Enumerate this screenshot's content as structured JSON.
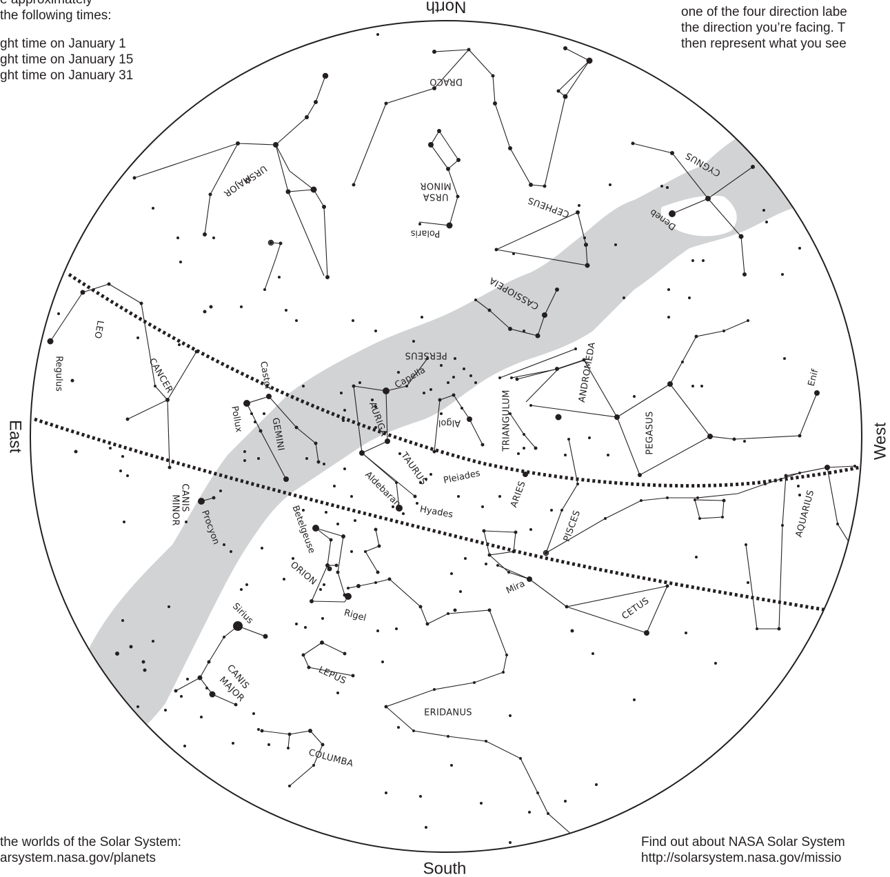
{
  "corner_text": {
    "top_left": [
      "e approximately",
      "the following times:",
      "ght time on January 1",
      "ght time on January 15",
      "ght time on January 31"
    ],
    "top_right": [
      "one of the four direction labe",
      "the direction you’re facing. T",
      "then represent what you see"
    ],
    "bottom_left": [
      "the worlds of the Solar System:",
      "arsystem.nasa.gov/planets"
    ],
    "bottom_right": [
      "Find out about NASA Solar System",
      "http://solarsystem.nasa.gov/missio"
    ]
  },
  "directions": {
    "north": "North",
    "south": "South",
    "east": "East",
    "west": "West"
  },
  "constellations": {
    "draco": "DRACO",
    "ursa_minor": [
      "URSA",
      "MINOR"
    ],
    "ursa_major": [
      "URSA",
      "MAJOR"
    ],
    "cepheus": "CEPHEUS",
    "cygnus": "CYGNUS",
    "cassiopeia": "CASSIOPEIA",
    "perseus": "PERSEUS",
    "andromeda": "ANDROMEDA",
    "triangulum": "TRIANGULUM",
    "pegasus": "PEGASUS",
    "leo": "LEO",
    "cancer": "CANCER",
    "gemini": "GEMINI",
    "auriga": "AURIGA",
    "taurus": "TAURUS",
    "aries": "ARIES",
    "pisces": "PISCES",
    "aquarius": "AQUARIUS",
    "canis_minor": [
      "CANIS",
      "MINOR"
    ],
    "orion": "ORION",
    "cetus": "CETUS",
    "lepus": "LEPUS",
    "canis_major": [
      "CANIS",
      "MAJOR"
    ],
    "eridanus": "ERIDANUS",
    "columba": "COLUMBA"
  },
  "stars": {
    "polaris": "Polaris",
    "deneb": "Deneb",
    "capella": "Capella",
    "castor": "Castor",
    "pollux": "Pollux",
    "regulus": "Regulus",
    "algol": "Algol",
    "enif": "Enif",
    "aldebaran": "Aldebaran",
    "pleiades": "Pleiades",
    "hyades": "Hyades",
    "procyon": "Procyon",
    "betelgeuse": "Betelgeuse",
    "rigel": "Rigel",
    "mira": "Mira",
    "sirius": "Sirius"
  }
}
